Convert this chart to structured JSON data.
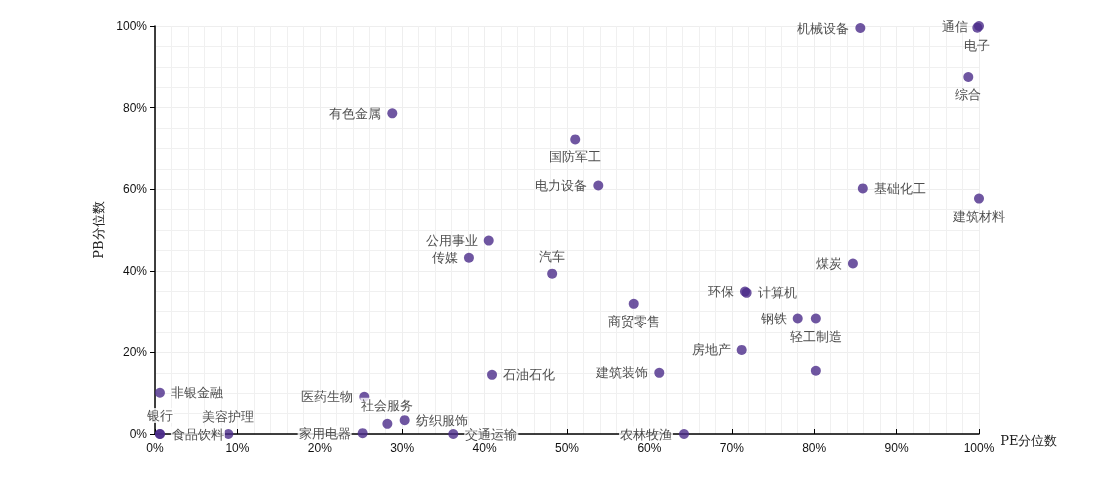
{
  "chart_data": {
    "type": "scatter",
    "xlabel": "PE分位数",
    "ylabel": "PB分位数",
    "xlim": [
      0,
      100
    ],
    "ylim": [
      0,
      100
    ],
    "xticks": [
      {
        "value": 0,
        "label": "0%"
      },
      {
        "value": 10,
        "label": "10%"
      },
      {
        "value": 20,
        "label": "20%"
      },
      {
        "value": 30,
        "label": "30%"
      },
      {
        "value": 40,
        "label": "40%"
      },
      {
        "value": 50,
        "label": "50%"
      },
      {
        "value": 60,
        "label": "60%"
      },
      {
        "value": 70,
        "label": "70%"
      },
      {
        "value": 80,
        "label": "80%"
      },
      {
        "value": 90,
        "label": "90%"
      },
      {
        "value": 100,
        "label": "100%"
      }
    ],
    "yticks": [
      {
        "value": 0,
        "label": "0%"
      },
      {
        "value": 20,
        "label": "20%"
      },
      {
        "value": 40,
        "label": "40%"
      },
      {
        "value": 60,
        "label": "60%"
      },
      {
        "value": 80,
        "label": "80%"
      },
      {
        "value": 100,
        "label": "100%"
      }
    ],
    "grid": true,
    "marker": "circle",
    "series": [
      {
        "color": "#4b2c89",
        "x": [
          85.6,
          100,
          99.8,
          98.7,
          28.8,
          51.0,
          53.8,
          85.9,
          100,
          40.5,
          38.1,
          48.2,
          84.7,
          71.6,
          71.8,
          58.1,
          78.0,
          80.2,
          71.2,
          61.2,
          80.2,
          40.9,
          25.4,
          30.3,
          28.2,
          25.2,
          36.2,
          64.2,
          0.6,
          8.9,
          0.6,
          0.6
        ],
        "values": [
          99.5,
          100,
          99.6,
          87.5,
          78.6,
          72.2,
          60.9,
          60.2,
          57.7,
          47.4,
          43.2,
          39.3,
          41.8,
          34.9,
          34.6,
          31.9,
          28.3,
          28.3,
          20.6,
          15.0,
          15.5,
          14.5,
          9.1,
          3.4,
          2.5,
          0.2,
          0,
          0,
          10.1,
          0,
          0,
          0
        ],
        "value_labels": [
          "机械设备",
          "通信",
          "电子",
          "综合",
          "有色金属",
          "国防军工",
          "电力设备",
          "基础化工",
          "建筑材料",
          "公用事业",
          "传媒",
          "汽车",
          "煤炭",
          "环保",
          "计算机",
          "商贸零售",
          "钢铁",
          "轻工制造",
          "房地产",
          "建筑装饰",
          null,
          "石油石化",
          "医药生物",
          "纺织服饰",
          "社会服务",
          "家用电器",
          "交通运输",
          "农林牧渔",
          "非银金融",
          "美容护理",
          "食品饮料",
          "银行"
        ]
      }
    ]
  }
}
